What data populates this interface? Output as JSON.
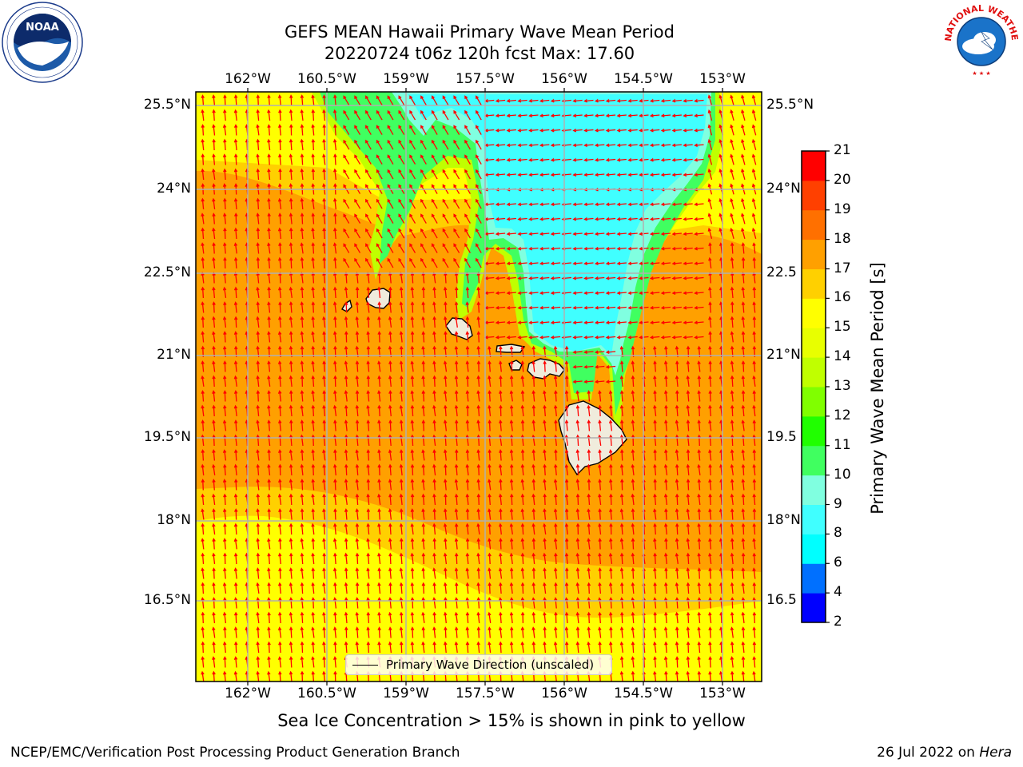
{
  "title": {
    "line1": "GEFS MEAN Hawaii Primary Wave Mean Period",
    "line2": "20220724 t06z 120h fcst   Max: 17.60"
  },
  "map": {
    "lon_labels": [
      "162°W",
      "160.5°W",
      "159°W",
      "157.5°W",
      "156°W",
      "154.5°W",
      "153°W"
    ],
    "lat_labels_left": [
      "25.5°N",
      "24°N",
      "22.5°N",
      "21°N",
      "19.5°N",
      "18°N",
      "16.5°N"
    ],
    "lat_labels_right": [
      "25.5°N",
      "24°N",
      "22.5",
      "21°N",
      "19.5",
      "18°N",
      "16.5"
    ],
    "arrow_color": "#ff0000",
    "land_color": "#f0ecdc"
  },
  "colorbar": {
    "label": "Primary Wave Mean Period [s]",
    "ticks": [
      "2",
      "4",
      "6",
      "8",
      "9",
      "10",
      "11",
      "12",
      "13",
      "14",
      "15",
      "16",
      "17",
      "18",
      "19",
      "20",
      "21"
    ],
    "colors": [
      "#0000ff",
      "#0070ff",
      "#00ffff",
      "#40ffff",
      "#80ffe0",
      "#40ff60",
      "#20ff00",
      "#80ff00",
      "#c0ff00",
      "#e8ff00",
      "#ffff00",
      "#ffd000",
      "#ffa000",
      "#ff7000",
      "#ff4000",
      "#ff0000"
    ]
  },
  "legend": {
    "label": "Primary Wave Direction (unscaled)"
  },
  "footnote": "Sea Ice Concentration > 15% is shown in pink to yellow",
  "credits": {
    "left": "NCEP/EMC/Verification Post Processing Product Generation Branch",
    "right_prefix": "26 Jul 2022 on ",
    "right_machine": "Hera"
  },
  "logos": {
    "noaa_text": "NOAA",
    "nws_text": "NATIONAL WEATHER SERVICE"
  }
}
